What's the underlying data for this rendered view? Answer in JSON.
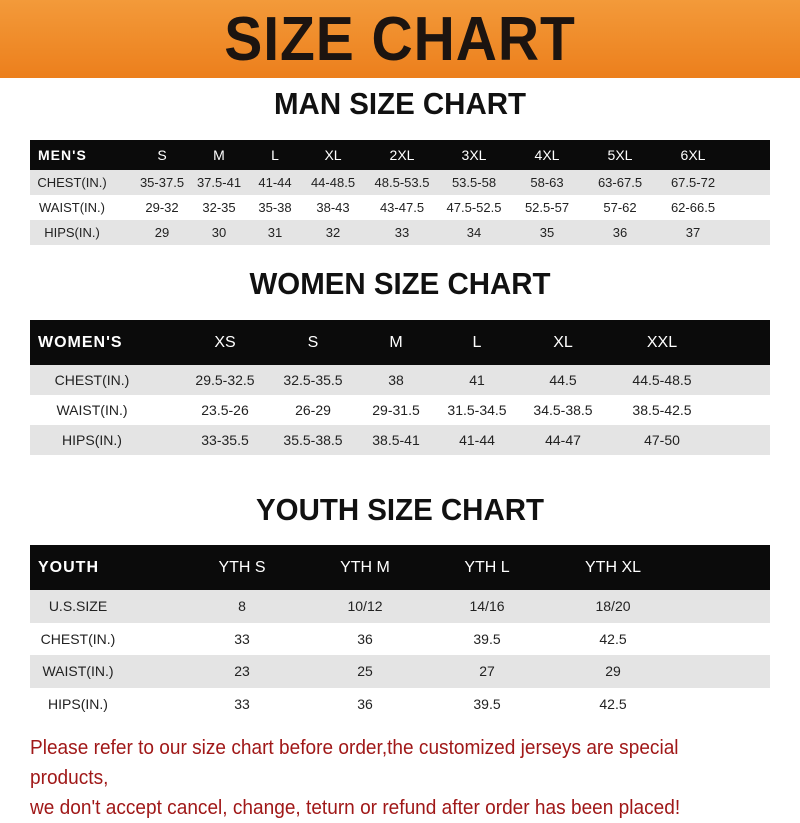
{
  "banner": {
    "title": "SIZE CHART",
    "color": "#ef8a26"
  },
  "men": {
    "title": "MAN SIZE CHART",
    "header": [
      "MEN'S",
      "S",
      "M",
      "L",
      "XL",
      "2XL",
      "3XL",
      "4XL",
      "5XL",
      "6XL"
    ],
    "rows": [
      [
        "CHEST(IN.)",
        "35-37.5",
        "37.5-41",
        "41-44",
        "44-48.5",
        "48.5-53.5",
        "53.5-58",
        "58-63",
        "63-67.5",
        "67.5-72"
      ],
      [
        "WAIST(IN.)",
        "29-32",
        "32-35",
        "35-38",
        "38-43",
        "43-47.5",
        "47.5-52.5",
        "52.5-57",
        "57-62",
        "62-66.5"
      ],
      [
        "HIPS(IN.)",
        "29",
        "30",
        "31",
        "32",
        "33",
        "34",
        "35",
        "36",
        "37"
      ]
    ]
  },
  "women": {
    "title": "WOMEN SIZE CHART",
    "header": [
      "WOMEN'S",
      "XS",
      "S",
      "M",
      "L",
      "XL",
      "XXL"
    ],
    "rows": [
      [
        "CHEST(IN.)",
        "29.5-32.5",
        "32.5-35.5",
        "38",
        "41",
        "44.5",
        "44.5-48.5"
      ],
      [
        "WAIST(IN.)",
        "23.5-26",
        "26-29",
        "29-31.5",
        "31.5-34.5",
        "34.5-38.5",
        "38.5-42.5"
      ],
      [
        "HIPS(IN.)",
        "33-35.5",
        "35.5-38.5",
        "38.5-41",
        "41-44",
        "44-47",
        "47-50"
      ]
    ]
  },
  "youth": {
    "title": "YOUTH SIZE CHART",
    "header": [
      "YOUTH",
      "YTH S",
      "YTH M",
      "YTH L",
      "YTH XL"
    ],
    "rows": [
      [
        "U.S.SIZE",
        "8",
        "10/12",
        "14/16",
        "18/20"
      ],
      [
        "CHEST(IN.)",
        "33",
        "36",
        "39.5",
        "42.5"
      ],
      [
        "WAIST(IN.)",
        "23",
        "25",
        "27",
        "29"
      ],
      [
        "HIPS(IN.)",
        "33",
        "36",
        "39.5",
        "42.5"
      ]
    ]
  },
  "note": {
    "line1": "Please refer to our size chart before order,the customized jerseys are special products,",
    "line2": "we don't accept cancel, change, teturn or refund after order has been placed!",
    "color": "#a01818"
  }
}
